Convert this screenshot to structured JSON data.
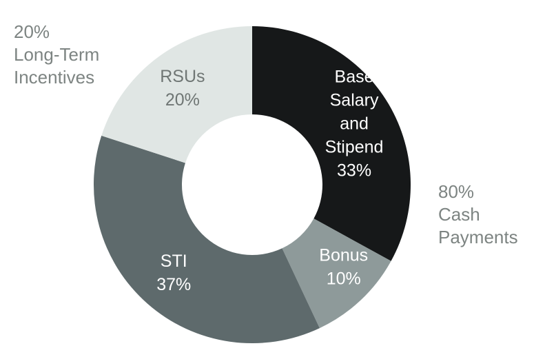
{
  "chart_data": {
    "type": "pie",
    "donut": true,
    "slices": [
      {
        "label_lines": [
          "Base",
          "Salary",
          "and",
          "Stipend"
        ],
        "value_label": "33%",
        "value": 33,
        "color": "#161819",
        "text_color": "#ffffff"
      },
      {
        "label_lines": [
          "Bonus"
        ],
        "value_label": "10%",
        "value": 10,
        "color": "#8e9a9a",
        "text_color": "#ffffff"
      },
      {
        "label_lines": [
          "STI"
        ],
        "value_label": "37%",
        "value": 37,
        "color": "#5e6a6c",
        "text_color": "#ffffff"
      },
      {
        "label_lines": [
          "RSUs"
        ],
        "value_label": "20%",
        "value": 20,
        "color": "#e0e6e4",
        "text_color": "#6f7674"
      }
    ],
    "groups": [
      {
        "id": "left",
        "lines": [
          "20%",
          "Long-Term",
          "Incentives"
        ]
      },
      {
        "id": "right",
        "lines": [
          "80%",
          "Cash",
          "Payments"
        ]
      }
    ]
  }
}
